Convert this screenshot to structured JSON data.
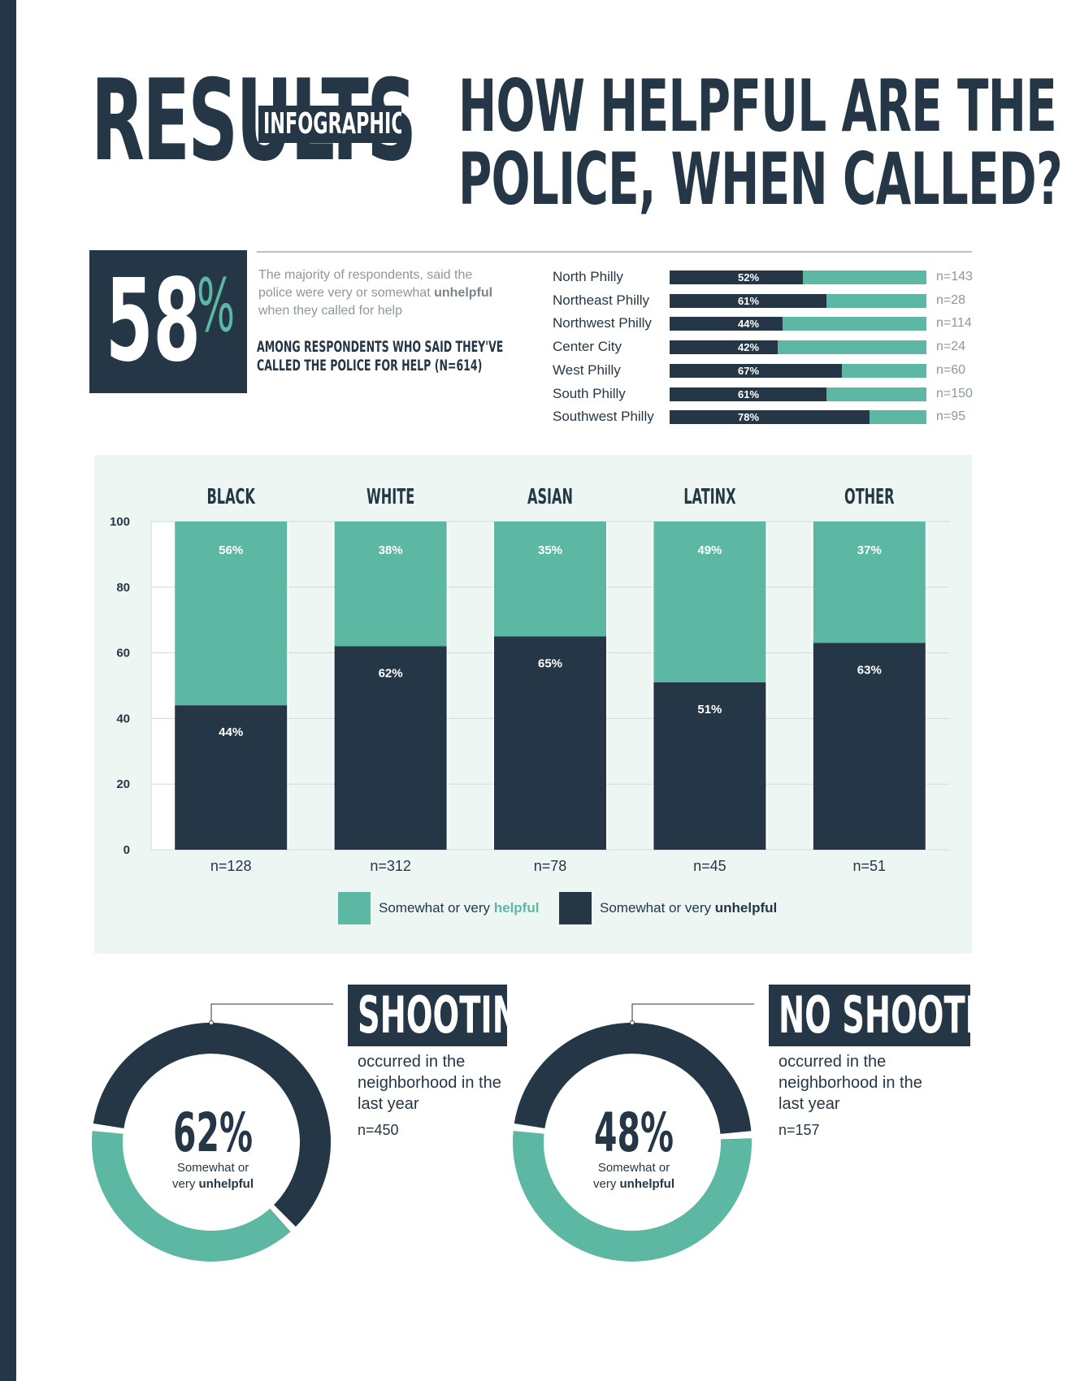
{
  "header": {
    "brand_big": "RESULTS",
    "brand_tag": "INFOGRAPHICS",
    "title_line1": "HOW HELPFUL ARE THE",
    "title_line2": "POLICE, WHEN CALLED?"
  },
  "summary": {
    "value": "58",
    "unit": "%",
    "desc_pre": "The majority of respondents, said the police were very or somewhat",
    "desc_bold": "unhelpful",
    "desc_post": "when they called for help",
    "note_line1": "AMONG RESPONDENTS WHO SAID THEY'VE",
    "note_line2": "CALLED THE POLICE FOR HELP (N=614)"
  },
  "colors": {
    "helpful": "#5cb8a3",
    "unhelpful": "#253746",
    "panel": "#eef6f4"
  },
  "chart_data": [
    {
      "type": "bar",
      "orientation": "horizontal-stacked",
      "categories": [
        "North Philly",
        "Northeast Philly",
        "Northwest Philly",
        "Center City",
        "West Philly",
        "South Philly",
        "Southwest Philly"
      ],
      "values": [
        52,
        61,
        44,
        42,
        67,
        61,
        78
      ],
      "value_labels": [
        "52%",
        "61%",
        "44%",
        "42%",
        "67%",
        "61%",
        "78%"
      ],
      "n_labels": [
        "n=143",
        "n=28",
        "n=114",
        "n=24",
        "n=60",
        "n=150",
        "n=95"
      ],
      "xlim": [
        0,
        100
      ]
    },
    {
      "type": "bar",
      "orientation": "vertical-stacked",
      "categories": [
        "BLACK",
        "WHITE",
        "ASIAN",
        "LATINX",
        "OTHER"
      ],
      "n_labels": [
        "n=128",
        "n=312",
        "n=78",
        "n=45",
        "n=51"
      ],
      "series": [
        {
          "name": "Somewhat or very unhelpful",
          "values": [
            44,
            62,
            65,
            51,
            63
          ],
          "labels": [
            "44%",
            "62%",
            "65%",
            "51%",
            "63%"
          ]
        },
        {
          "name": "Somewhat or very helpful",
          "values": [
            56,
            38,
            35,
            49,
            37
          ],
          "labels": [
            "56%",
            "38%",
            "35%",
            "49%",
            "37%"
          ]
        }
      ],
      "yticks": [
        "0",
        "20",
        "40",
        "60",
        "80",
        "100"
      ],
      "ylim": [
        0,
        100
      ],
      "grid": true,
      "legend": {
        "position": "bottom",
        "helpful_pre": "Somewhat or very",
        "helpful_bold": "helpful",
        "unhelpful_pre": "Somewhat or very",
        "unhelpful_bold": "unhelpful"
      }
    },
    {
      "type": "pie",
      "style": "donut",
      "title": "SHOOTING",
      "desc": "occurred in the neighborhood in the last year",
      "n": "n=450",
      "center_value": "62%",
      "center_label_pre": "Somewhat or",
      "center_label_mid": "very",
      "center_label_bold": "unhelpful",
      "values": [
        62,
        38
      ]
    },
    {
      "type": "pie",
      "style": "donut",
      "title": "NO SHOOTING",
      "desc": "occurred in the neighborhood in the last year",
      "n": "n=157",
      "center_value": "48%",
      "center_label_pre": "Somewhat or",
      "center_label_mid": "very",
      "center_label_bold": "unhelpful",
      "values": [
        48,
        52
      ]
    }
  ]
}
